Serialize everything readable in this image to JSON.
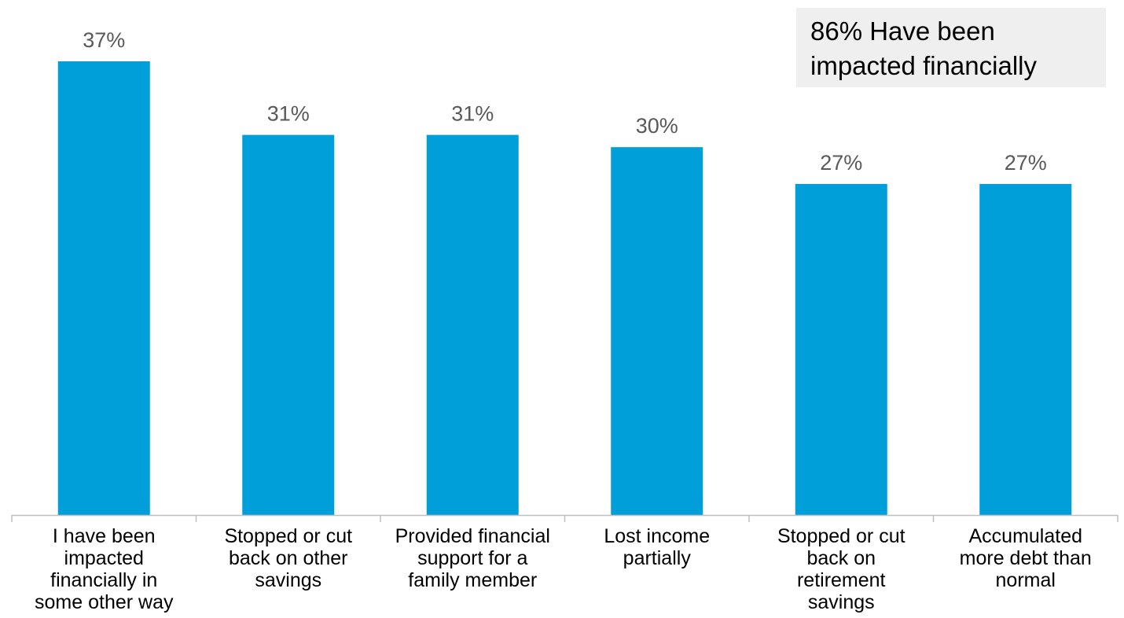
{
  "callout": {
    "lines": [
      "86% Have been",
      "impacted financially"
    ]
  },
  "colors": {
    "bar": "#009fda",
    "axis": "#bfbfbf"
  },
  "chart_data": {
    "type": "bar",
    "categories": [
      [
        "I have been",
        "impacted",
        "financially in",
        "some other way"
      ],
      [
        "Stopped or cut",
        "back on other",
        "savings"
      ],
      [
        "Provided financial",
        "support for a",
        "family member"
      ],
      [
        "Lost income",
        "partially"
      ],
      [
        "Stopped or cut",
        "back on",
        "retirement",
        "savings"
      ],
      [
        "Accumulated",
        "more debt than",
        "normal"
      ]
    ],
    "values": [
      37,
      31,
      31,
      30,
      27,
      27
    ],
    "value_labels": [
      "37%",
      "31%",
      "31%",
      "30%",
      "27%",
      "27%"
    ],
    "title": "",
    "xlabel": "",
    "ylabel": "",
    "ylim": [
      0,
      37
    ],
    "grid": false,
    "legend": "none"
  }
}
